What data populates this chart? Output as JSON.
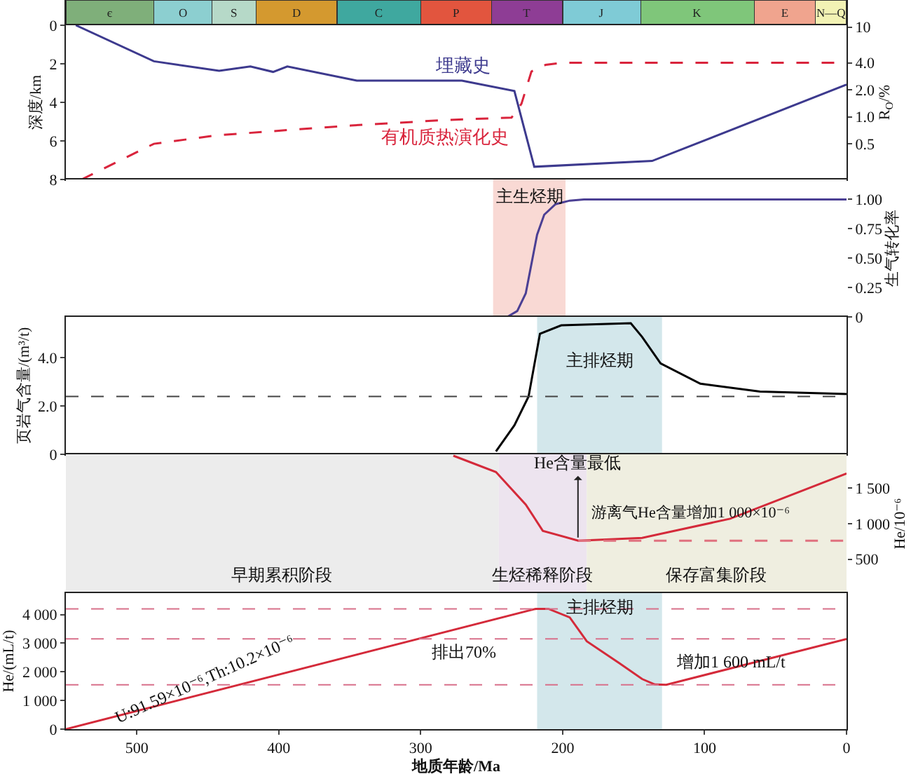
{
  "chart_data": [
    {
      "type": "bar",
      "orientation": "horizontal",
      "stacked": true,
      "categories": [
        null
      ],
      "xlim": [
        550,
        0
      ],
      "tick_labels": false,
      "series": [
        {
          "name": "N—Q",
          "color": "#f2f2b4",
          "values": [
            22
          ]
        },
        {
          "name": "E",
          "color": "#f0a48e",
          "values": [
            43
          ]
        },
        {
          "name": "K",
          "color": "#7fc67a",
          "values": [
            80
          ]
        },
        {
          "name": "J",
          "color": "#7fcbd6",
          "values": [
            55
          ]
        },
        {
          "name": "T",
          "color": "#8e3d95",
          "values": [
            50
          ]
        },
        {
          "name": "P",
          "color": "#e2553e",
          "values": [
            50
          ]
        },
        {
          "name": "C",
          "color": "#3fa89f",
          "values": [
            59
          ]
        },
        {
          "name": "D",
          "color": "#d4992f",
          "values": [
            57
          ]
        },
        {
          "name": "S",
          "color": "#b6d9c8",
          "values": [
            31
          ]
        },
        {
          "name": "O",
          "color": "#8ccfd0",
          "values": [
            41
          ]
        },
        {
          "name": "є",
          "color": "#7faf7a",
          "values": [
            62
          ]
        }
      ]
    },
    {
      "type": "line",
      "ylabel": "深度/km",
      "y2label": "R$_{O}$/%",
      "xlim": [
        550,
        0
      ],
      "ylim": [
        8,
        0
      ],
      "yticks": [
        0,
        2,
        4,
        6,
        8
      ],
      "y2lim": [
        0.2,
        10.5
      ],
      "y2ticks": [
        10,
        {
          "value": 4,
          "label": "4.0"
        },
        {
          "value": 2,
          "label": "2.0"
        },
        {
          "value": 1,
          "label": "1.0"
        },
        0.5
      ],
      "log": "y2",
      "tick_labels": "y",
      "series": [
        {
          "name": "埋藏史",
          "color": "#3d3a8e",
          "x": [
            543,
            488,
            442,
            420,
            404,
            394,
            345,
            271,
            234,
            220,
            137,
            0
          ],
          "values": [
            0,
            1.87,
            2.36,
            2.14,
            2.42,
            2.14,
            2.87,
            2.87,
            3.41,
            7.34,
            7.04,
            3.08
          ]
        },
        {
          "name": "有机质热演化史",
          "color": "#d9243c",
          "axis": "y2",
          "line_style": "dashed",
          "x": [
            539,
            488,
            444,
            400,
            349,
            283,
            236,
            229,
            222,
            212,
            200,
            0
          ],
          "values": [
            0.2,
            0.5,
            0.62,
            0.7,
            0.8,
            0.92,
            0.98,
            1.4,
            3.2,
            3.8,
            4.0,
            4.0
          ]
        }
      ]
    },
    {
      "type": "line",
      "y2label": "生气转化率",
      "xlim": [
        550,
        0
      ],
      "y2lim": [
        0,
        1.17
      ],
      "y2ticks": [
        0,
        {
          "value": 0.25,
          "label": "0.25"
        },
        {
          "value": 0.5,
          "label": "0.50"
        },
        {
          "value": 0.75,
          "label": "0.75"
        },
        {
          "value": 1,
          "label": "1.00"
        }
      ],
      "tick_labels": "y",
      "bands": [
        {
          "axis": "x",
          "from": 249,
          "to": 198,
          "label": "主生烃期",
          "color": "#f9d9d4"
        }
      ],
      "series": [
        {
          "color": "#4b3f94",
          "axis": "y2",
          "x": [
            239,
            232,
            226,
            222,
            218,
            213,
            205,
            195,
            185,
            0
          ],
          "values": [
            0,
            0.05,
            0.2,
            0.45,
            0.7,
            0.87,
            0.96,
            0.99,
            1.0,
            1.0
          ]
        }
      ]
    },
    {
      "type": "line",
      "ylabel": "页岩气含量/(m³/t)",
      "xlim": [
        550,
        0
      ],
      "ylim": [
        0,
        5.7
      ],
      "yticks": [
        0,
        {
          "value": 2,
          "label": "2.0"
        },
        {
          "value": 4,
          "label": "4.0"
        }
      ],
      "tick_labels": "y",
      "bands": [
        {
          "axis": "x",
          "from": 218,
          "to": 130,
          "label": "主排烃期",
          "color": "#d3e7eb"
        }
      ],
      "ref_lines": [
        {
          "axis": "y",
          "value": 2.4,
          "color": "#444444",
          "line_style": "dashed"
        }
      ],
      "series": [
        {
          "color": "#000000",
          "x": [
            247,
            234,
            224,
            216,
            201,
            152,
            144,
            131,
            103,
            61,
            0
          ],
          "values": [
            0.12,
            1.2,
            2.4,
            5.0,
            5.35,
            5.44,
            4.87,
            3.77,
            2.93,
            2.6,
            2.5
          ]
        }
      ]
    },
    {
      "type": "line",
      "y2label": "He/10⁻⁶",
      "xlim": [
        550,
        0
      ],
      "y2lim": [
        20,
        1980
      ],
      "y2ticks": [
        500,
        {
          "value": 1000,
          "label": "1 000"
        },
        {
          "value": 1500,
          "label": "1 500"
        }
      ],
      "tick_labels": "y",
      "bands": [
        {
          "axis": "x",
          "from": 550,
          "to": 245,
          "label": "早期累积阶段",
          "color": "#ececec"
        },
        {
          "axis": "x",
          "from": 245,
          "to": 183,
          "label": "生烃稀释阶段",
          "color": "#ede4ef"
        },
        {
          "axis": "x",
          "from": 183,
          "to": 0,
          "label": "保存富集阶段",
          "color": "#efeee0"
        }
      ],
      "annotations": [
        "He含量最低",
        "游离气He含量增加1 000×10⁻⁶"
      ],
      "series": [
        {
          "color": "#d42a3a",
          "axis": "y2",
          "x": [
            277,
            247,
            226,
            214,
            189,
            144,
            82,
            0
          ],
          "values": [
            1960,
            1730,
            1270,
            900,
            760,
            800,
            1070,
            1710
          ]
        },
        {
          "color": "#e0707e",
          "axis": "y2",
          "line_style": "dashed",
          "x": [
            189,
            0
          ],
          "values": [
            760,
            760
          ]
        }
      ]
    },
    {
      "type": "line",
      "ylabel": "He/(mL/t)",
      "xlabel": "地质年龄/Ma",
      "xlim": [
        550,
        0
      ],
      "xticks": [
        500,
        400,
        300,
        200,
        100,
        0
      ],
      "ylim": [
        0,
        4750
      ],
      "yticks": [
        0,
        {
          "value": 1000,
          "label": "1 000"
        },
        {
          "value": 2000,
          "label": "2 000"
        },
        {
          "value": 3000,
          "label": "3 000"
        },
        {
          "value": 4000,
          "label": "4 000"
        }
      ],
      "bands": [
        {
          "axis": "x",
          "from": 218,
          "to": 130,
          "label": "主排烃期",
          "color": "#d3e7eb"
        }
      ],
      "ref_lines": [
        {
          "axis": "y",
          "value": 4200,
          "color": "#d8708a",
          "line_style": "dashed"
        },
        {
          "axis": "y",
          "value": 3150,
          "color": "#d8708a",
          "line_style": "dashed"
        },
        {
          "axis": "y",
          "value": 1550,
          "color": "#d8708a",
          "line_style": "dashed"
        }
      ],
      "annotations": [
        {
          "text": "U:91.59×10⁻⁶,Th:10.2×10⁻⁶",
          "x": 452,
          "y": 1740
        },
        "排出70%",
        "增加1 600 mL/t"
      ],
      "series": [
        {
          "color": "#d42a3a",
          "x": [
            550,
            219,
            210,
            195,
            183,
            160,
            144,
            135,
            127,
            0
          ],
          "values": [
            0,
            4200,
            4200,
            3900,
            3070,
            2300,
            1750,
            1560,
            1550,
            3150
          ]
        }
      ]
    }
  ]
}
